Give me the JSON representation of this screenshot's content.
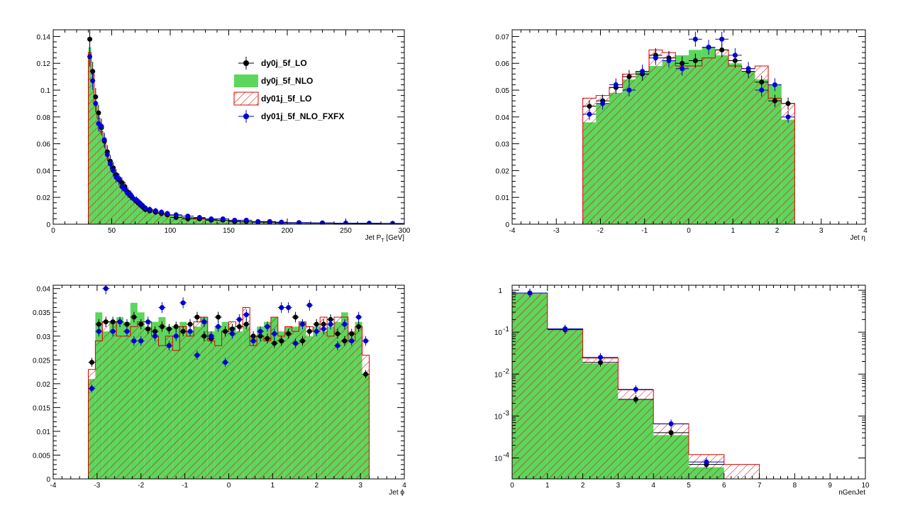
{
  "colors": {
    "dy0j_5f_LO": "#000000",
    "dy0j_5f_NLO": "#5cd65c",
    "dy01j_5f_LO": "#dd0000",
    "dy01j_5f_NLO_FXFX": "#0000cc"
  },
  "legend": {
    "entries": [
      {
        "label": "dy0j_5f_LO",
        "style": "marker",
        "color": "#000000"
      },
      {
        "label": "dy0j_5f_NLO",
        "style": "fill",
        "color": "#5cd65c"
      },
      {
        "label": "dy01j_5f_LO",
        "style": "hatch",
        "color": "#dd0000"
      },
      {
        "label": "dy01j_5f_NLO_FXFX",
        "style": "marker",
        "color": "#0000cc"
      }
    ],
    "placement": "top-right of first pad"
  },
  "chart_data": [
    {
      "type": "histogram",
      "xlabel_main": "Jet P",
      "xlabel_sub": "T",
      "xlabel_tail": " [GeV]",
      "xlim": [
        0,
        300
      ],
      "ylim": [
        0,
        0.145
      ],
      "log_y": false,
      "xticks": [
        0,
        50,
        100,
        150,
        200,
        250,
        300
      ],
      "yticks": [
        0,
        0.02,
        0.04,
        0.06,
        0.08,
        0.1,
        0.12,
        0.14
      ],
      "ytick_labels": [
        "0",
        "0.02",
        "0.04",
        "0.06",
        "0.08",
        "0.1",
        "0.12",
        "0.14"
      ],
      "bin_edges": [
        30,
        32.5,
        35,
        37.5,
        40,
        42.5,
        45,
        47.5,
        50,
        52.5,
        55,
        57.5,
        60,
        62.5,
        65,
        67.5,
        70,
        72.5,
        75,
        77.5,
        80,
        85,
        90,
        95,
        100,
        110,
        120,
        130,
        140,
        150,
        160,
        170,
        180,
        190,
        200,
        220,
        240,
        260,
        280,
        300
      ],
      "series": [
        {
          "name": "dy0j_5f_NLO",
          "values": [
            0.132,
            0.114,
            0.092,
            0.081,
            0.07,
            0.062,
            0.053,
            0.046,
            0.041,
            0.037,
            0.033,
            0.03,
            0.027,
            0.024,
            0.021,
            0.019,
            0.017,
            0.015,
            0.013,
            0.012,
            0.011,
            0.009,
            0.008,
            0.007,
            0.006,
            0.005,
            0.004,
            0.0035,
            0.003,
            0.0025,
            0.002,
            0.0018,
            0.0015,
            0.0013,
            0.001,
            0.0008,
            0.0006,
            0.0005,
            0.0004
          ]
        },
        {
          "name": "dy01j_5f_LO",
          "values": [
            0.128,
            0.112,
            0.09,
            0.079,
            0.069,
            0.061,
            0.052,
            0.046,
            0.041,
            0.036,
            0.033,
            0.03,
            0.027,
            0.024,
            0.022,
            0.019,
            0.017,
            0.015,
            0.013,
            0.012,
            0.011,
            0.009,
            0.008,
            0.007,
            0.0065,
            0.005,
            0.0045,
            0.0035,
            0.003,
            0.0025,
            0.002,
            0.0018,
            0.0015,
            0.0013,
            0.001,
            0.0008,
            0.0006,
            0.0005,
            0.0004
          ]
        },
        {
          "name": "dy0j_5f_LO",
          "values": [
            0.138,
            0.114,
            0.095,
            0.083,
            0.072,
            0.062,
            0.054,
            0.047,
            0.042,
            0.037,
            0.033,
            0.031,
            0.028,
            0.024,
            0.021,
            0.019,
            0.017,
            0.015,
            0.013,
            0.011,
            0.01,
            0.009,
            0.008,
            0.007,
            0.005,
            0.004,
            0.004,
            0.003,
            0.003,
            0.002,
            0.002,
            0.0015,
            0.0015,
            0.001,
            0.001,
            0.0008,
            0.0006,
            0.0005,
            0.0004
          ]
        },
        {
          "name": "dy01j_5f_NLO_FXFX",
          "values": [
            0.125,
            0.107,
            0.09,
            0.075,
            0.073,
            0.063,
            0.052,
            0.045,
            0.04,
            0.035,
            0.034,
            0.028,
            0.026,
            0.023,
            0.022,
            0.019,
            0.018,
            0.016,
            0.014,
            0.012,
            0.011,
            0.01,
            0.009,
            0.008,
            0.007,
            0.006,
            0.005,
            0.004,
            0.004,
            0.003,
            0.003,
            0.002,
            0.002,
            0.0015,
            0.0012,
            0.001,
            0.0008,
            0.0007,
            0.0006
          ]
        }
      ]
    },
    {
      "type": "histogram",
      "xlabel_main": "Jet ",
      "xlabel_sub": "",
      "xlabel_tail": "",
      "xlabel_greek": "η",
      "xlim": [
        -4,
        4
      ],
      "ylim": [
        0,
        0.0725
      ],
      "log_y": false,
      "xticks": [
        -4,
        -3,
        -2,
        -1,
        0,
        1,
        2,
        3,
        4
      ],
      "yticks": [
        0,
        0.01,
        0.02,
        0.03,
        0.04,
        0.05,
        0.06,
        0.07
      ],
      "ytick_labels": [
        "0",
        "0.01",
        "0.02",
        "0.03",
        "0.04",
        "0.05",
        "0.06",
        "0.07"
      ],
      "bin_edges": [
        -2.4,
        -2.1,
        -1.8,
        -1.5,
        -1.2,
        -0.9,
        -0.6,
        -0.3,
        0,
        0.3,
        0.6,
        0.9,
        1.2,
        1.5,
        1.8,
        2.1,
        2.4
      ],
      "series": [
        {
          "name": "dy0j_5f_NLO",
          "values": [
            0.038,
            0.045,
            0.049,
            0.054,
            0.057,
            0.059,
            0.061,
            0.063,
            0.065,
            0.066,
            0.063,
            0.06,
            0.057,
            0.054,
            0.052,
            0.039
          ]
        },
        {
          "name": "dy01j_5f_LO",
          "values": [
            0.047,
            0.048,
            0.051,
            0.056,
            0.057,
            0.065,
            0.064,
            0.059,
            0.059,
            0.062,
            0.065,
            0.059,
            0.058,
            0.059,
            0.047,
            0.045
          ]
        },
        {
          "name": "dy0j_5f_LO",
          "values": [
            0.044,
            0.046,
            0.051,
            0.055,
            0.056,
            0.063,
            0.062,
            0.06,
            0.061,
            0.066,
            0.065,
            0.061,
            0.057,
            0.053,
            0.046,
            0.045
          ]
        },
        {
          "name": "dy01j_5f_NLO_FXFX",
          "values": [
            0.041,
            0.045,
            0.052,
            0.05,
            0.057,
            0.062,
            0.061,
            0.058,
            0.069,
            0.066,
            0.069,
            0.063,
            0.058,
            0.05,
            0.052,
            0.04
          ]
        }
      ]
    },
    {
      "type": "histogram",
      "xlabel_main": "Jet ",
      "xlabel_sub": "",
      "xlabel_tail": "",
      "xlabel_greek": "ϕ",
      "xlim": [
        -4,
        4
      ],
      "ylim": [
        0,
        0.0407
      ],
      "log_y": false,
      "xticks": [
        -4,
        -3,
        -2,
        -1,
        0,
        1,
        2,
        3,
        4
      ],
      "yticks": [
        0,
        0.005,
        0.01,
        0.015,
        0.02,
        0.025,
        0.03,
        0.035,
        0.04
      ],
      "ytick_labels": [
        "0",
        "0.005",
        "0.01",
        "0.015",
        "0.02",
        "0.025",
        "0.03",
        "0.035",
        "0.04"
      ],
      "bin_edges": [
        -3.2,
        -3.04,
        -2.88,
        -2.72,
        -2.56,
        -2.4,
        -2.24,
        -2.08,
        -1.92,
        -1.76,
        -1.6,
        -1.44,
        -1.28,
        -1.12,
        -0.96,
        -0.8,
        -0.64,
        -0.48,
        -0.32,
        -0.16,
        0,
        0.16,
        0.32,
        0.48,
        0.64,
        0.8,
        0.96,
        1.12,
        1.28,
        1.44,
        1.6,
        1.76,
        1.92,
        2.08,
        2.24,
        2.4,
        2.56,
        2.72,
        2.88,
        3.04,
        3.2
      ],
      "series": [
        {
          "name": "dy0j_5f_NLO",
          "values": [
            0.021,
            0.035,
            0.031,
            0.033,
            0.034,
            0.033,
            0.037,
            0.035,
            0.032,
            0.033,
            0.034,
            0.032,
            0.032,
            0.033,
            0.031,
            0.032,
            0.034,
            0.031,
            0.032,
            0.033,
            0.032,
            0.031,
            0.032,
            0.03,
            0.032,
            0.033,
            0.034,
            0.031,
            0.032,
            0.032,
            0.033,
            0.03,
            0.032,
            0.031,
            0.032,
            0.033,
            0.035,
            0.031,
            0.033,
            0.022
          ]
        },
        {
          "name": "dy01j_5f_LO",
          "values": [
            0.023,
            0.029,
            0.033,
            0.033,
            0.03,
            0.03,
            0.032,
            0.033,
            0.033,
            0.03,
            0.028,
            0.03,
            0.027,
            0.032,
            0.03,
            0.033,
            0.034,
            0.029,
            0.028,
            0.031,
            0.033,
            0.032,
            0.036,
            0.028,
            0.03,
            0.029,
            0.034,
            0.03,
            0.032,
            0.031,
            0.033,
            0.032,
            0.031,
            0.034,
            0.03,
            0.034,
            0.034,
            0.029,
            0.032,
            0.026
          ]
        },
        {
          "name": "dy0j_5f_LO",
          "values": [
            0.0245,
            0.0325,
            0.033,
            0.033,
            0.033,
            0.0325,
            0.034,
            0.0325,
            0.0315,
            0.031,
            0.032,
            0.0315,
            0.032,
            0.031,
            0.0325,
            0.034,
            0.03,
            0.0295,
            0.034,
            0.031,
            0.0315,
            0.032,
            0.0325,
            0.03,
            0.03,
            0.0295,
            0.0285,
            0.029,
            0.0305,
            0.034,
            0.029,
            0.031,
            0.0325,
            0.0325,
            0.0335,
            0.0305,
            0.029,
            0.0305,
            0.032,
            0.022
          ]
        },
        {
          "name": "dy01j_5f_NLO_FXFX",
          "values": [
            0.019,
            0.031,
            0.04,
            0.031,
            0.033,
            0.031,
            0.029,
            0.029,
            0.033,
            0.03,
            0.036,
            0.028,
            0.03,
            0.037,
            0.031,
            0.026,
            0.033,
            0.03,
            0.032,
            0.0245,
            0.0305,
            0.0335,
            0.0345,
            0.029,
            0.031,
            0.032,
            0.0305,
            0.036,
            0.036,
            0.0285,
            0.0325,
            0.0365,
            0.031,
            0.0315,
            0.0325,
            0.028,
            0.0325,
            0.029,
            0.034,
            0.029
          ]
        }
      ]
    },
    {
      "type": "histogram",
      "xlabel_main": "nGenJet",
      "xlabel_sub": "",
      "xlabel_tail": "",
      "xlim": [
        0,
        10
      ],
      "ylim_log10": [
        -4.5,
        0.12
      ],
      "log_y": true,
      "xticks": [
        0,
        1,
        2,
        3,
        4,
        5,
        6,
        7,
        8,
        9,
        10
      ],
      "ytick_exponents": [
        0,
        -1,
        -2,
        -3,
        -4
      ],
      "ytick_labels": [
        "1",
        "10",
        "10",
        "10",
        "10"
      ],
      "ytick_superscripts": [
        "",
        "-1",
        "-2",
        "-3",
        "-4"
      ],
      "bin_edges": [
        0,
        1,
        2,
        3,
        4,
        5,
        6,
        7
      ],
      "series": [
        {
          "name": "dy0j_5f_NLO",
          "values": [
            0.85,
            0.115,
            0.018,
            0.0025,
            0.00035,
            6e-05,
            null
          ]
        },
        {
          "name": "dy01j_5f_LO",
          "values": [
            0.86,
            0.12,
            0.024,
            0.0042,
            0.00065,
            0.00012,
            7e-05
          ]
        },
        {
          "name": "dy0j_5f_LO",
          "values": [
            0.86,
            0.115,
            0.019,
            0.0025,
            0.0004,
            7e-05,
            null
          ]
        },
        {
          "name": "dy01j_5f_NLO_FXFX",
          "values": [
            0.86,
            0.12,
            0.025,
            0.0043,
            0.00065,
            8e-05,
            null
          ]
        }
      ]
    }
  ]
}
